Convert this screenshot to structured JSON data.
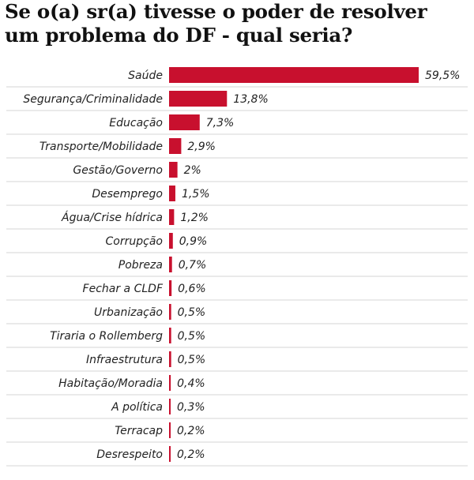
{
  "title_lines": [
    "Se o(a) sr(a) tivesse o poder de resolver",
    "um problema do DF - qual seria?"
  ],
  "colors": {
    "bar": "#c8102e",
    "gridline": "#d6d6d6",
    "text": "#222222"
  },
  "chart_data": {
    "type": "bar",
    "orientation": "horizontal",
    "title": "Se o(a) sr(a) tivesse o poder de resolver um problema do DF - qual seria?",
    "categories": [
      "Saúde",
      "Segurança/Criminalidade",
      "Educação",
      "Transporte/Mobilidade",
      "Gestão/Governo",
      "Desemprego",
      "Água/Crise hídrica",
      "Corrupção",
      "Pobreza",
      "Fechar a CLDF",
      "Urbanização",
      "Tiraria o Rollemberg",
      "Infraestrutura",
      "Habitação/Moradia",
      "A política",
      "Terracap",
      "Desrespeito"
    ],
    "values": [
      59.5,
      13.8,
      7.3,
      2.9,
      2,
      1.5,
      1.2,
      0.9,
      0.7,
      0.6,
      0.5,
      0.5,
      0.5,
      0.4,
      0.3,
      0.2,
      0.2
    ],
    "value_labels": [
      "59,5%",
      "13,8%",
      "7,3%",
      "2,9%",
      "2%",
      "1,5%",
      "1,2%",
      "0,9%",
      "0,7%",
      "0,6%",
      "0,5%",
      "0,5%",
      "0,5%",
      "0,4%",
      "0,3%",
      "0,2%",
      "0,2%"
    ],
    "unit": "%",
    "xlim": [
      0,
      59.5
    ],
    "grid": true,
    "legend": "none"
  }
}
